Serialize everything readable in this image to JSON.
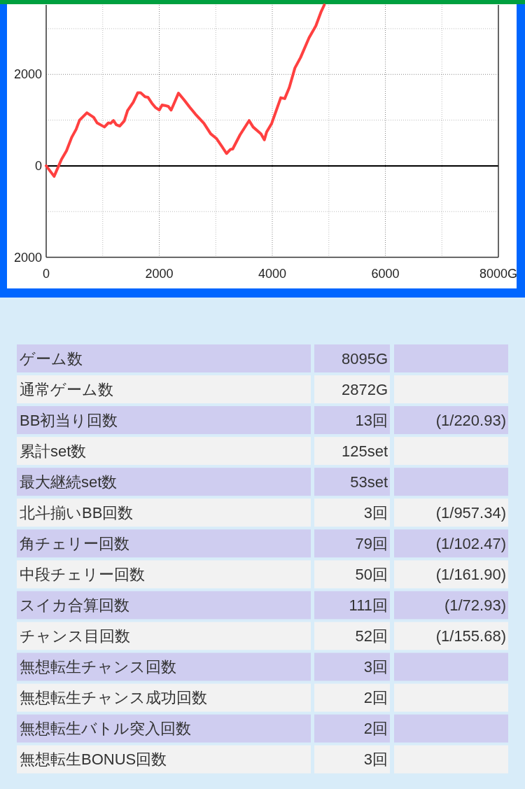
{
  "chart_data": [
    {
      "type": "line",
      "x": [
        0,
        140,
        270,
        360,
        450,
        530,
        590,
        720,
        840,
        900,
        1030,
        1100,
        1140,
        1190,
        1240,
        1300,
        1380,
        1440,
        1540,
        1620,
        1670,
        1750,
        1800,
        1870,
        1930,
        2000,
        2050,
        2100,
        2160,
        2210,
        2250,
        2340,
        2440,
        2540,
        2640,
        2790,
        2910,
        3010,
        3110,
        3190,
        3260,
        3300,
        3430,
        3590,
        3660,
        3800,
        3860,
        3900,
        3990,
        4070,
        4150,
        4220,
        4300,
        4400,
        4500,
        4650,
        4770,
        4860,
        4920
      ],
      "series": [
        {
          "color": "#ff4040",
          "values": [
            0,
            -230,
            140,
            330,
            620,
            800,
            1000,
            1160,
            1060,
            940,
            850,
            940,
            930,
            990,
            900,
            870,
            980,
            1210,
            1390,
            1600,
            1600,
            1510,
            1500,
            1370,
            1280,
            1220,
            1330,
            1320,
            1300,
            1220,
            1330,
            1590,
            1440,
            1280,
            1130,
            930,
            700,
            600,
            420,
            270,
            360,
            370,
            680,
            990,
            850,
            700,
            570,
            740,
            930,
            1210,
            1490,
            1470,
            1710,
            2140,
            2370,
            2800,
            3060,
            3360,
            3520
          ]
        }
      ],
      "xlim": [
        0,
        8000
      ],
      "ylim": [
        -2000,
        3520
      ],
      "xticks": [
        0,
        {
          "value": 1000,
          "label": null
        },
        2000,
        {
          "value": 3000,
          "label": null
        },
        4000,
        {
          "value": 5000,
          "label": null
        },
        6000,
        {
          "value": 7000,
          "label": null
        },
        {
          "value": 8000,
          "label": "8000G"
        }
      ],
      "yticks": [
        {
          "value": -2000,
          "label": "2000"
        },
        {
          "value": -1000,
          "label": null
        },
        0,
        {
          "value": 1000,
          "label": null
        },
        2000,
        {
          "value": 3000,
          "label": null
        }
      ],
      "grid": true,
      "line_style": "solid",
      "ref_lines": [
        {
          "axis": "y",
          "value": 0,
          "color": "#000000"
        }
      ]
    },
    {
      "type": "other",
      "y_categories": [
        "ゲーム数",
        "通常ゲーム数",
        "BB初当り回数",
        "累計set数",
        "最大継続set数",
        "北斗揃いBB回数",
        "角チェリー回数",
        "中段チェリー回数",
        "スイカ合算回数",
        "チャンス目回数",
        "無想転生チャンス回数",
        "無想転生チャンス成功回数",
        "無想転生バトル突入回数",
        "無想転生BONUS回数"
      ],
      "cell_labels": [
        [
          "8095G",
          null
        ],
        [
          "2872G",
          null
        ],
        [
          "13回",
          "(1/220.93)"
        ],
        [
          "125set",
          null
        ],
        [
          "53set",
          null
        ],
        [
          "3回",
          "(1/957.34)"
        ],
        [
          "79回",
          "(1/102.47)"
        ],
        [
          "50回",
          "(1/161.90)"
        ],
        [
          "111回",
          "(1/72.93)"
        ],
        [
          "52回",
          "(1/155.68)"
        ],
        [
          "3回",
          null
        ],
        [
          "2回",
          null
        ],
        [
          "2回",
          null
        ],
        [
          "3回",
          null
        ]
      ],
      "colors": [
        "#cfcdf0",
        "#f2f2f2",
        "#cfcdf0",
        "#f2f2f2",
        "#cfcdf0",
        "#f2f2f2",
        "#cfcdf0",
        "#f2f2f2",
        "#cfcdf0",
        "#f2f2f2",
        "#cfcdf0",
        "#f2f2f2",
        "#cfcdf0",
        "#f2f2f2"
      ]
    }
  ]
}
